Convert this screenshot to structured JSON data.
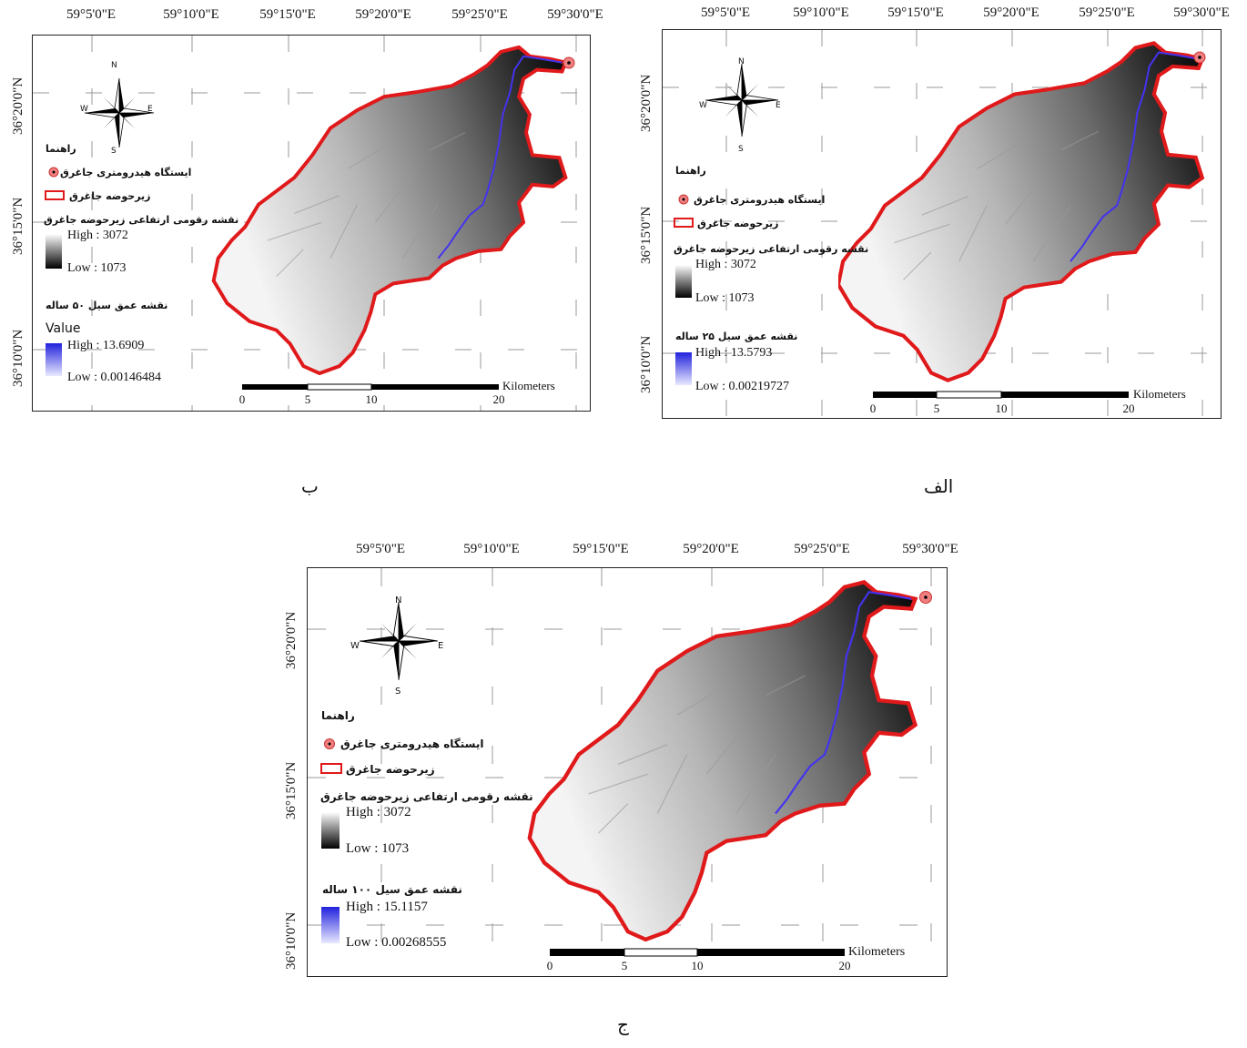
{
  "lon_ticks": [
    "59°5'0\"E",
    "59°10'0\"E",
    "59°15'0\"E",
    "59°20'0\"E",
    "59°25'0\"E",
    "59°30'0\"E"
  ],
  "lat_ticks": [
    "36°20'0\"N",
    "36°15'0\"N",
    "36°10'0\"N"
  ],
  "compass": {
    "n": "N",
    "s": "S",
    "e": "E",
    "w": "W"
  },
  "scale": {
    "ticks": [
      "0",
      "5",
      "10",
      "20"
    ],
    "unit": "Kilometers"
  },
  "legend_common": {
    "title": "راهنما",
    "station": "ایستگاه هیدرومتری جاغرق",
    "subbasin": "زیرحوضه جاغرق",
    "dem_title": "نقشه رقومی ارتفاعی زیرحوضه جاغرق"
  },
  "colors": {
    "boundary": "#e0191b",
    "flood": "#4433ee",
    "station_fill": "#f08080"
  },
  "panels": {
    "alef": {
      "caption": "الف",
      "dem_high": "High : 3072",
      "dem_low": "Low : 1073",
      "flood_title": "نقشه عمق سیل ۲۵ ساله",
      "flood_high": "High : 13.5793",
      "flood_low": "Low : 0.00219727"
    },
    "be": {
      "caption": "ب",
      "dem_high": "High : 3072",
      "dem_low": "Low : 1073",
      "flood_title": "نقشه عمق سیل ۵۰ ساله",
      "value_label": "Value",
      "flood_high": "High : 13.6909",
      "flood_low": "Low : 0.00146484"
    },
    "jim": {
      "caption": "ج",
      "dem_high": "High : 3072",
      "dem_low": "Low : 1073",
      "flood_title": "نقشه عمق سیل ۱۰۰ ساله",
      "flood_high": "High : 15.1157",
      "flood_low": "Low : 0.00268555"
    }
  }
}
